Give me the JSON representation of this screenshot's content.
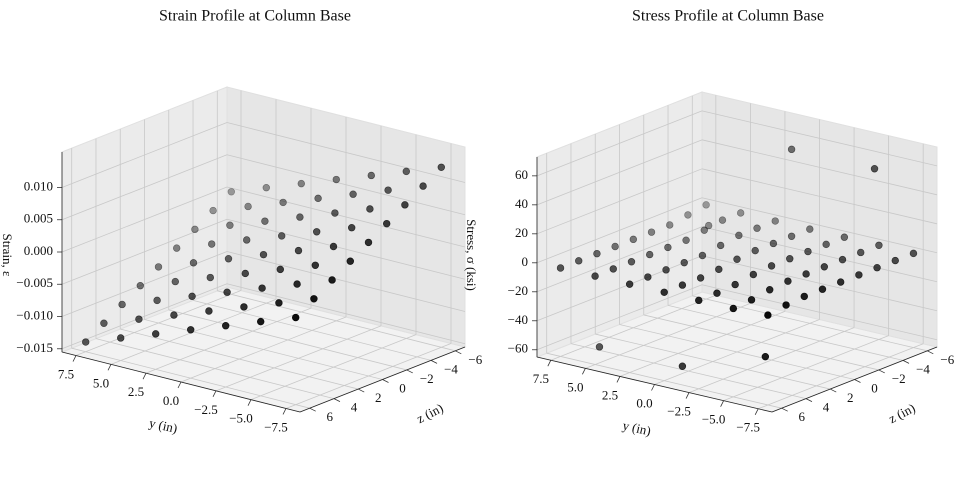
{
  "chart_data": [
    {
      "type": "scatter3d",
      "title": "Strain Profile at Column Base",
      "xlabel": "y (in)",
      "ylabel": "z (in)",
      "zlabel": "Strain, ε",
      "color": "#000000",
      "x": [
        -7.5,
        -5,
        -2.5,
        0,
        2.5,
        5,
        7.5
      ],
      "y": [
        -6,
        -4.5,
        -3,
        -1.5,
        0,
        1.5,
        3,
        4.5,
        6
      ],
      "values": [
        [
          0.0124,
          0.0106,
          0.0088,
          0.007,
          0.0052,
          0.0034,
          0.0016,
          -0.0002,
          -0.002
        ],
        [
          0.0104,
          0.0086,
          0.0068,
          0.005,
          0.0032,
          0.0014,
          -0.0004,
          -0.0022,
          -0.004
        ],
        [
          0.0084,
          0.0066,
          0.0048,
          0.003,
          0.0012,
          -0.0006,
          -0.0024,
          -0.0042,
          -0.006
        ],
        [
          0.0064,
          0.0046,
          0.0028,
          0.001,
          -0.0008,
          -0.0026,
          -0.0044,
          -0.0062,
          -0.008
        ],
        [
          0.0044,
          0.0026,
          0.0008,
          -0.001,
          -0.0028,
          -0.0046,
          -0.0064,
          -0.0082,
          -0.01
        ],
        [
          0.0024,
          0.0006,
          -0.0012,
          -0.003,
          -0.0048,
          -0.0066,
          -0.0084,
          -0.0102,
          -0.012
        ],
        [
          0.0004,
          -0.0014,
          -0.0032,
          -0.005,
          -0.0068,
          -0.0086,
          -0.0104,
          -0.0122,
          -0.014
        ]
      ],
      "xlim": [
        -8.5,
        8.5
      ],
      "ylim": [
        -6.8,
        6.8
      ],
      "zlim": [
        -0.0155,
        0.0155
      ],
      "xticks": [
        {
          "value": -7.5,
          "label": "−7.5"
        },
        {
          "value": -5,
          "label": "−5.0"
        },
        {
          "value": -2.5,
          "label": "−2.5"
        },
        {
          "value": 0,
          "label": "0.0"
        },
        2.5,
        {
          "value": 5,
          "label": "5.0"
        },
        7.5
      ],
      "yticks": [
        {
          "value": -6,
          "label": "−6"
        },
        {
          "value": -4,
          "label": "−4"
        },
        {
          "value": -2,
          "label": "−2"
        },
        0,
        2,
        4,
        6
      ],
      "zticks": [
        {
          "value": -0.015,
          "label": "−0.015"
        },
        {
          "value": -0.01,
          "label": "−0.010"
        },
        {
          "value": -0.005,
          "label": "−0.005"
        },
        {
          "value": 0,
          "label": "0.000"
        },
        {
          "value": 0.005,
          "label": "0.005"
        },
        {
          "value": 0.01,
          "label": "0.010"
        }
      ]
    },
    {
      "type": "scatter3d",
      "title": "Stress Profile at Column Base",
      "xlabel": "y (in)",
      "ylabel": "z (in)",
      "zlabel": "Stress, σ (ksi)",
      "color": "#000000",
      "x": [
        -7.5,
        -5,
        -2.5,
        0,
        2.5,
        5,
        7.5
      ],
      "y": [
        -6,
        -4.5,
        -3,
        -1.5,
        0,
        1.5,
        3,
        4.5,
        6
      ],
      "values": [
        [
          0,
          0,
          0,
          0,
          0,
          0,
          0,
          -1,
          -3
        ],
        [
          0,
          0,
          0,
          0,
          0,
          0,
          -1,
          -3,
          -4
        ],
        [
          0,
          0,
          0,
          0,
          0,
          -1,
          -3,
          -4,
          -4
        ],
        [
          0,
          0,
          0,
          0,
          -1,
          -3,
          -4,
          -4,
          -4
        ],
        [
          0,
          0,
          0,
          -2,
          -4,
          -4,
          -4,
          -4,
          -4
        ],
        [
          0,
          0,
          -2,
          -4,
          -4,
          -4,
          -4,
          -4,
          -4
        ],
        [
          0,
          -2,
          -4,
          -4,
          -4,
          -4,
          -4,
          -4,
          -4
        ]
      ],
      "rebar": {
        "x": [
          -6,
          0,
          6,
          -6,
          0,
          6
        ],
        "y": [
          -4.5,
          -4.5,
          -4.5,
          4.5,
          4.5,
          4.5
        ],
        "values": [
          60,
          60,
          -6,
          -40,
          -60,
          -60
        ]
      },
      "xlim": [
        -8.5,
        8.5
      ],
      "ylim": [
        -6.8,
        6.8
      ],
      "zlim": [
        -65,
        73
      ],
      "xticks": [
        {
          "value": -7.5,
          "label": "−7.5"
        },
        {
          "value": -5,
          "label": "−5.0"
        },
        {
          "value": -2.5,
          "label": "−2.5"
        },
        {
          "value": 0,
          "label": "0.0"
        },
        2.5,
        {
          "value": 5,
          "label": "5.0"
        },
        7.5
      ],
      "yticks": [
        {
          "value": -6,
          "label": "−6"
        },
        {
          "value": -4,
          "label": "−4"
        },
        {
          "value": -2,
          "label": "−2"
        },
        0,
        2,
        4,
        6
      ],
      "zticks": [
        {
          "value": -60,
          "label": "−60"
        },
        {
          "value": -40,
          "label": "−40"
        },
        {
          "value": -20,
          "label": "−20"
        },
        0,
        20,
        40,
        60
      ]
    }
  ]
}
